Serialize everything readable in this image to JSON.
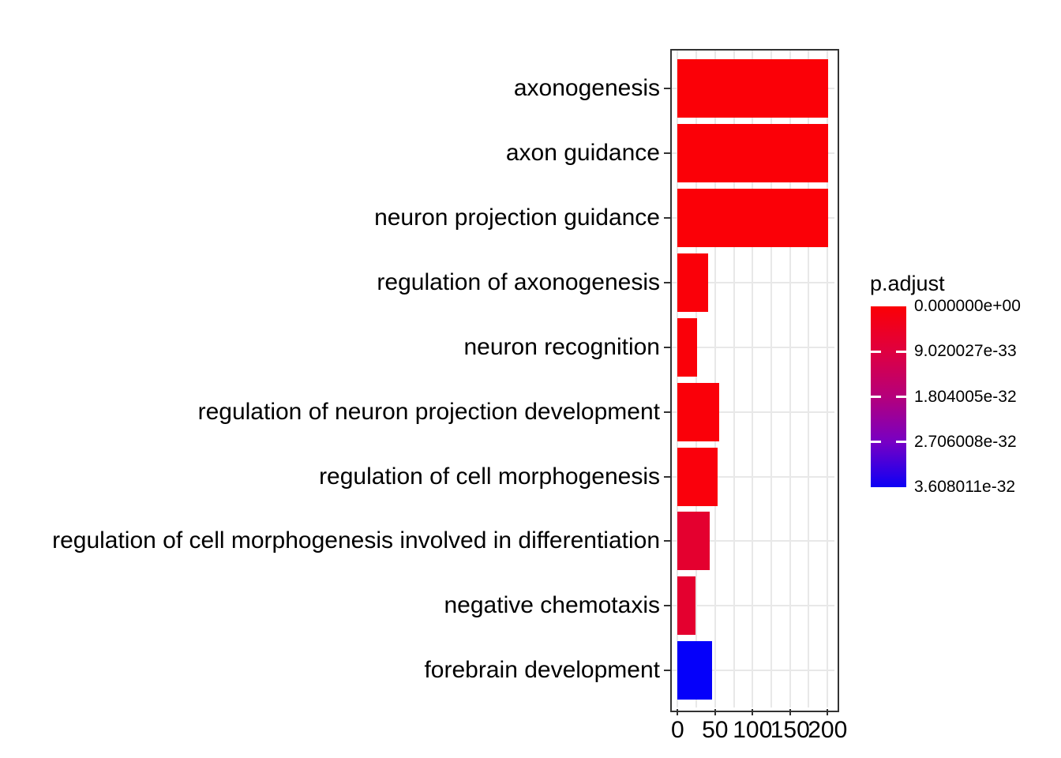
{
  "chart_data": {
    "type": "bar",
    "orientation": "horizontal",
    "title": "",
    "xlabel": "",
    "ylabel": "",
    "grid": "on",
    "xlim": [
      0,
      211
    ],
    "x_ticks": [
      0,
      50,
      100,
      150,
      200
    ],
    "minor_grid_step": 25,
    "categories": [
      "axonogenesis",
      "axon guidance",
      "neuron projection guidance",
      "regulation of axonogenesis",
      "neuron recognition",
      "regulation of neuron projection development",
      "regulation of cell morphogenesis",
      "regulation of cell morphogenesis involved in differentiation",
      "negative chemotaxis",
      "forebrain development"
    ],
    "values": [
      201,
      201,
      201,
      41,
      26,
      55,
      53,
      43,
      24,
      46
    ],
    "bar_colors": [
      "#fb0007",
      "#fb0007",
      "#fb0007",
      "#fa0009",
      "#fa0009",
      "#fa0009",
      "#fa000c",
      "#e4002f",
      "#e4002f",
      "#0500fa"
    ],
    "legend": {
      "title": "p.adjust",
      "position": "right",
      "style": "colorbar",
      "tick_labels": [
        "0.000000e+00",
        "9.020027e-33",
        "1.804005e-32",
        "2.706008e-32",
        "3.608011e-32"
      ],
      "gradient_stops": [
        "#fb0005",
        "#df0040",
        "#b5007b",
        "#7700c4",
        "#0d00f5"
      ]
    },
    "colors": {
      "panel_border": "#333333",
      "gridline": "#e8e8e8",
      "tick": "#333333",
      "text": "#000000",
      "background": "#ffffff"
    }
  }
}
